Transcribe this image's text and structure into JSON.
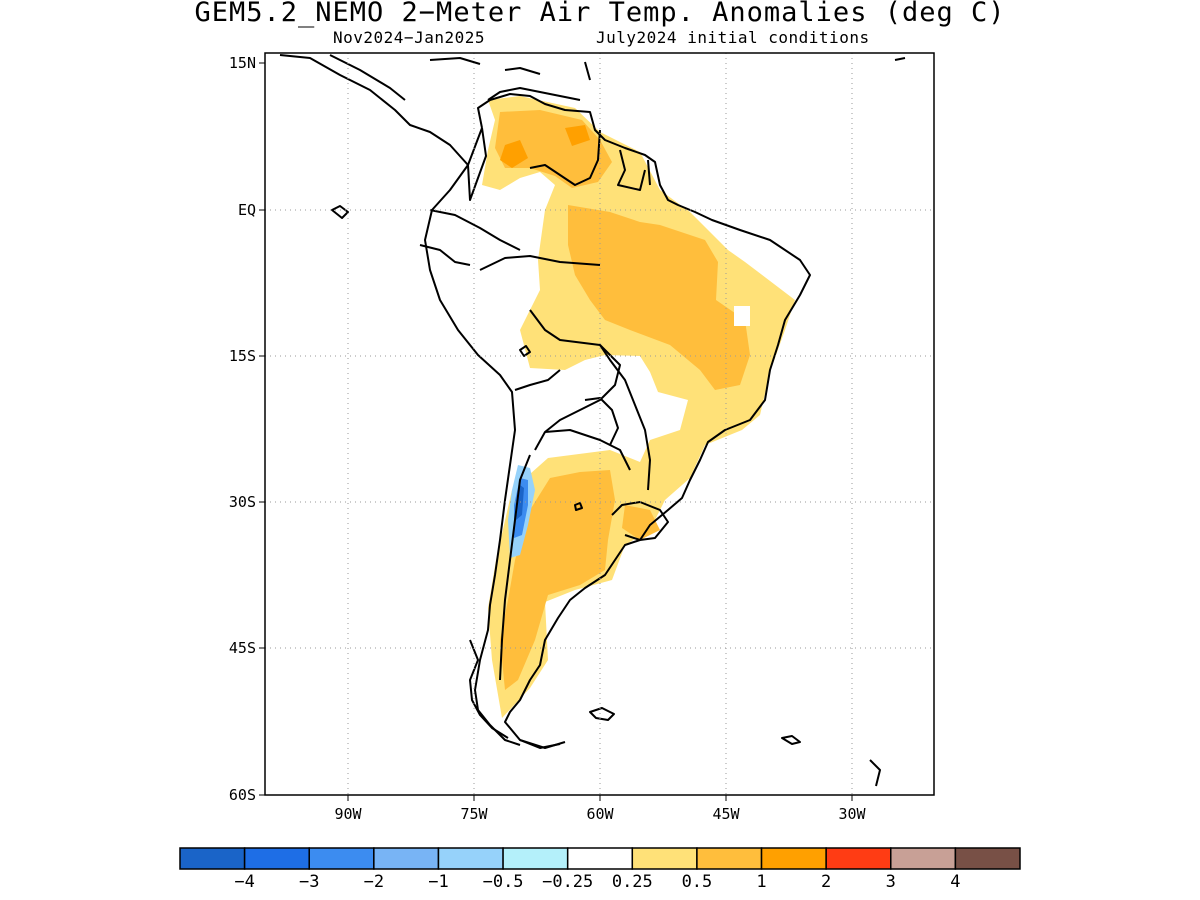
{
  "map": {
    "title": "GEM5.2_NEMO 2−Meter Air Temp. Anomalies (deg C)",
    "subtitle_left": "Nov2024−Jan2025",
    "subtitle_right": "July2024 initial conditions",
    "lat_labels": [
      "15N",
      "EQ",
      "15S",
      "30S",
      "45S",
      "60S"
    ],
    "lon_labels": [
      "90W",
      "75W",
      "60W",
      "45W",
      "30W"
    ],
    "gridlines": "dotted",
    "region": "South America",
    "lon_range": [
      -100,
      -20
    ],
    "lat_range": [
      -60,
      15
    ]
  },
  "legend": {
    "colors": [
      "#1a64c8",
      "#1e6ee6",
      "#3c8cf0",
      "#78b4f5",
      "#96d2fa",
      "#b4f0fa",
      "#ffffff",
      "#ffe178",
      "#ffbe3c",
      "#ffa000",
      "#ff3c14",
      "#c8a096",
      "#785046"
    ],
    "labels": [
      "−4",
      "−3",
      "−2",
      "−1",
      "−0.5",
      "−0.25",
      "0.25",
      "0.5",
      "1",
      "2",
      "3",
      "4"
    ]
  }
}
